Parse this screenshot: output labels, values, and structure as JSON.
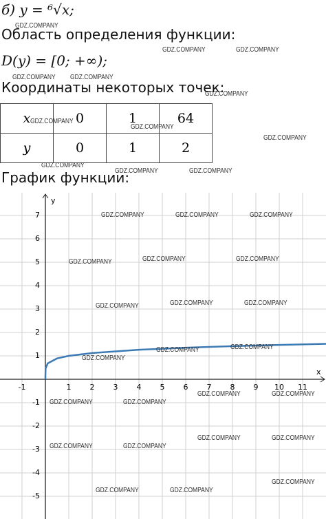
{
  "task_formula": "б) y = ⁶√x;",
  "domain_heading": "Область определения функции:",
  "domain": "D(y) = [0; +∞);",
  "points_heading": "Координаты некоторых точек:",
  "table": {
    "rows": [
      [
        "x",
        "0",
        "1",
        "64"
      ],
      [
        "y",
        "0",
        "1",
        "2"
      ]
    ]
  },
  "graph_heading": "График функции:",
  "watermark": "GDZ.COMPANY",
  "chart_data": {
    "type": "line",
    "x_label": "x",
    "y_label": "y",
    "xlim": [
      -1.94,
      12
    ],
    "ylim": [
      -5.97,
      7.97
    ],
    "xticks": [
      -1,
      1,
      2,
      3,
      4,
      5,
      6,
      7,
      8,
      9,
      10,
      11
    ],
    "yticks": [
      -5,
      -4,
      -3,
      -2,
      -1,
      1,
      2,
      3,
      4,
      5,
      6,
      7
    ],
    "grid": true,
    "x": [
      0,
      0.01,
      0.1,
      0.5,
      1,
      2,
      4,
      6,
      8,
      10,
      12
    ],
    "series": [
      {
        "color": "#3b7ab5",
        "values": [
          0,
          0.464,
          0.681,
          0.891,
          1,
          1.122,
          1.26,
          1.348,
          1.414,
          1.468,
          1.513
        ]
      }
    ]
  }
}
